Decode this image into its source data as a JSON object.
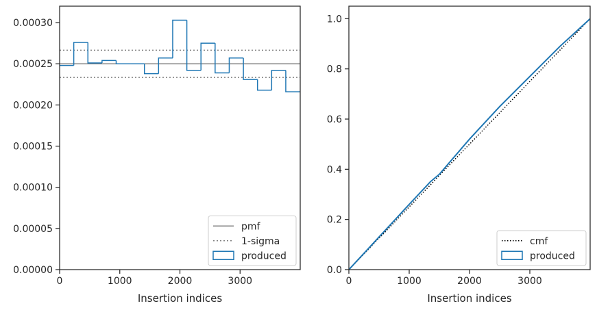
{
  "chart_data": [
    {
      "type": "step",
      "xlabel": "Insertion indices",
      "ylabel": "",
      "xlim": [
        0,
        4000
      ],
      "ylim": [
        0,
        0.00032
      ],
      "xticks": [
        0,
        1000,
        2000,
        3000
      ],
      "xtick_labels": [
        "0",
        "1000",
        "2000",
        "3000"
      ],
      "yticks": [
        0,
        5e-05,
        0.0001,
        0.00015,
        0.0002,
        0.00025,
        0.0003
      ],
      "ytick_labels": [
        "0.00000",
        "0.00005",
        "0.00010",
        "0.00015",
        "0.00020",
        "0.00025",
        "0.00030"
      ],
      "grid": false,
      "legend_position": "lower right",
      "hlines": [
        {
          "name": "pmf",
          "y": 0.00025,
          "style": "solid",
          "color": "#808080"
        },
        {
          "name": "1-sigma",
          "y": 0.0002665,
          "style": "dotted",
          "color": "#808080"
        },
        {
          "name": "1-sigma",
          "y": 0.0002335,
          "style": "dotted",
          "color": "#808080"
        }
      ],
      "series": [
        {
          "name": "produced",
          "color": "#1f77b4",
          "bin_edges": [
            0,
            235,
            470,
            705,
            940,
            1175,
            1410,
            1645,
            1880,
            2115,
            2350,
            2585,
            2820,
            3055,
            3290,
            3525,
            3760,
            4000
          ],
          "values": [
            0.000248,
            0.000276,
            0.000251,
            0.000254,
            0.00025,
            0.00025,
            0.000238,
            0.000257,
            0.000303,
            0.000242,
            0.000275,
            0.000239,
            0.000257,
            0.000231,
            0.000218,
            0.000242,
            0.000216
          ]
        }
      ],
      "legend": [
        {
          "label": "pmf",
          "kind": "solid-line",
          "color": "#808080"
        },
        {
          "label": "1-sigma",
          "kind": "dotted-line",
          "color": "#808080"
        },
        {
          "label": "produced",
          "kind": "box",
          "color": "#1f77b4"
        }
      ]
    },
    {
      "type": "line",
      "xlabel": "Insertion indices",
      "ylabel": "",
      "xlim": [
        0,
        4000
      ],
      "ylim": [
        0,
        1.05
      ],
      "xticks": [
        0,
        1000,
        2000,
        3000
      ],
      "xtick_labels": [
        "0",
        "1000",
        "2000",
        "3000"
      ],
      "yticks": [
        0,
        0.2,
        0.4,
        0.6,
        0.8,
        1.0
      ],
      "ytick_labels": [
        "0.0",
        "0.2",
        "0.4",
        "0.6",
        "0.8",
        "1.0"
      ],
      "grid": false,
      "legend_position": "lower right",
      "series": [
        {
          "name": "cmf",
          "style": "dotted",
          "color": "#000000",
          "x": [
            0,
            4000
          ],
          "y": [
            0,
            1.0
          ]
        },
        {
          "name": "produced",
          "style": "solid",
          "color": "#1f77b4",
          "x": [
            0,
            500,
            1000,
            1350,
            1500,
            2000,
            2500,
            3000,
            3500,
            4000
          ],
          "y": [
            0,
            0.13,
            0.26,
            0.35,
            0.38,
            0.52,
            0.65,
            0.77,
            0.89,
            1.0
          ]
        }
      ],
      "legend": [
        {
          "label": "cmf",
          "kind": "dotted-line",
          "color": "#000000"
        },
        {
          "label": "produced",
          "kind": "box",
          "color": "#1f77b4"
        }
      ]
    }
  ]
}
